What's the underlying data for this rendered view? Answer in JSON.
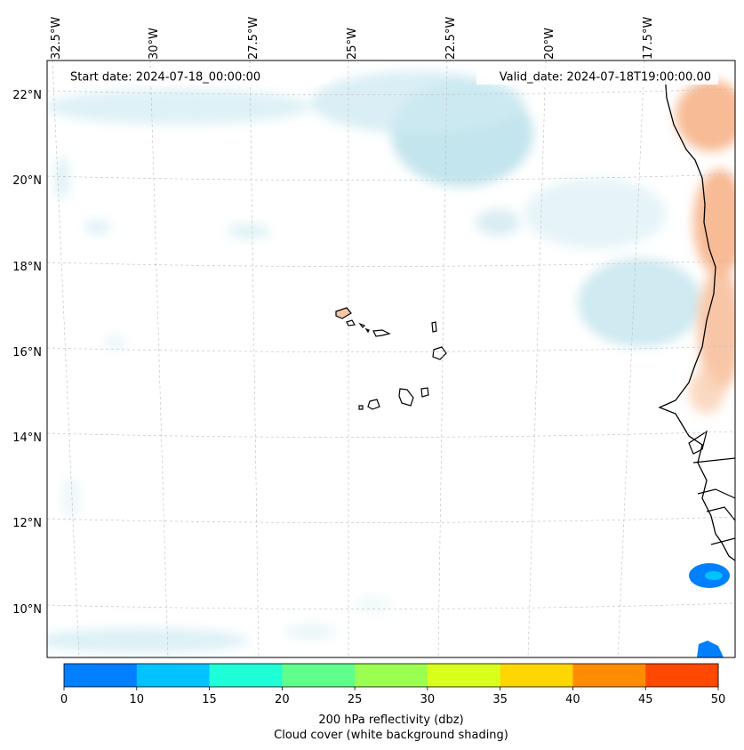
{
  "header": {
    "start_date": "Start date: 2024-07-18_00:00:00",
    "valid_date": "Valid_date: 2024-07-18T19:00:00.00"
  },
  "map": {
    "lon_labels": [
      "32.5°W",
      "30°W",
      "27.5°W",
      "25°W",
      "22.5°W",
      "20°W",
      "17.5°W"
    ],
    "lat_labels": [
      "22°N",
      "20°N",
      "18°N",
      "16°N",
      "14°N",
      "12°N",
      "10°N"
    ],
    "gridlines": "dashed",
    "colors": {
      "cloud": "#b9e0ea",
      "land_heat": "#f6b48a",
      "coast": "#000000"
    }
  },
  "colorbar": {
    "ticks": [
      "0",
      "10",
      "15",
      "20",
      "25",
      "30",
      "35",
      "40",
      "45",
      "50"
    ],
    "colors": [
      "#0080ff",
      "#00c3ff",
      "#1effd8",
      "#5eff8a",
      "#9bff51",
      "#d9ff1c",
      "#ffd700",
      "#ff8c00",
      "#ff4800"
    ],
    "label_line1": "200 hPa reflectivity (dbz)",
    "label_line2": "Cloud cover (white background shading)"
  }
}
